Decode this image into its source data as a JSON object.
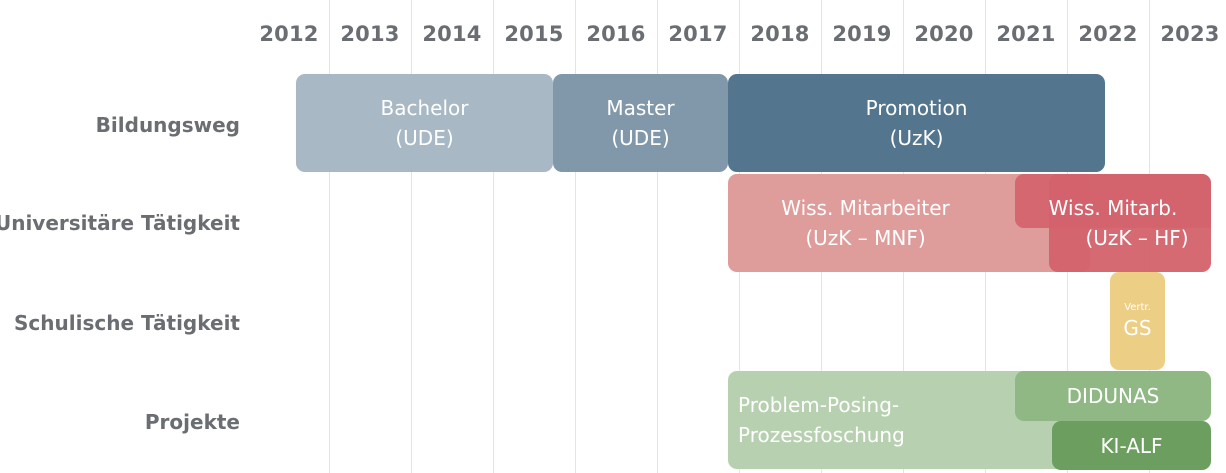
{
  "years": [
    "2012",
    "2013",
    "2014",
    "2015",
    "2016",
    "2017",
    "2018",
    "2019",
    "2020",
    "2021",
    "2022",
    "2023"
  ],
  "rows": {
    "education": "Bildungsweg",
    "university": "Universitäre Tätigkeit",
    "school": "Schulische Tätigkeit",
    "projects": "Projekte"
  },
  "bars": {
    "bachelor": {
      "line1": "Bachelor",
      "line2": "(UDE)",
      "color": "#a8b8c4"
    },
    "master": {
      "line1": "Master",
      "line2": "(UDE)",
      "color": "#8198ab"
    },
    "promotion": {
      "line1": "Promotion",
      "line2": "(UzK)",
      "color": "#53768e"
    },
    "wiss_mnf": {
      "line1": "Wiss. Mitarbeiter",
      "line2": "(UzK – MNF)",
      "color": "#de9c9a"
    },
    "wiss_hf": {
      "line1": "Wiss. Mitarb.",
      "line2": "(UzK – HF)",
      "color": "#d3626b"
    },
    "vertr_gs": {
      "line1": "Vertr.",
      "line2": "GS",
      "color": "#ecce84"
    },
    "problem_posing": {
      "line1": "Problem-Posing-",
      "line2": "Prozessfoschung",
      "color": "#b7d1b0"
    },
    "didunas": {
      "line1": "DIDUNAS",
      "color": "#8fb884"
    },
    "ki_alf": {
      "line1": "KI-ALF",
      "color": "#6c9e5f"
    }
  }
}
